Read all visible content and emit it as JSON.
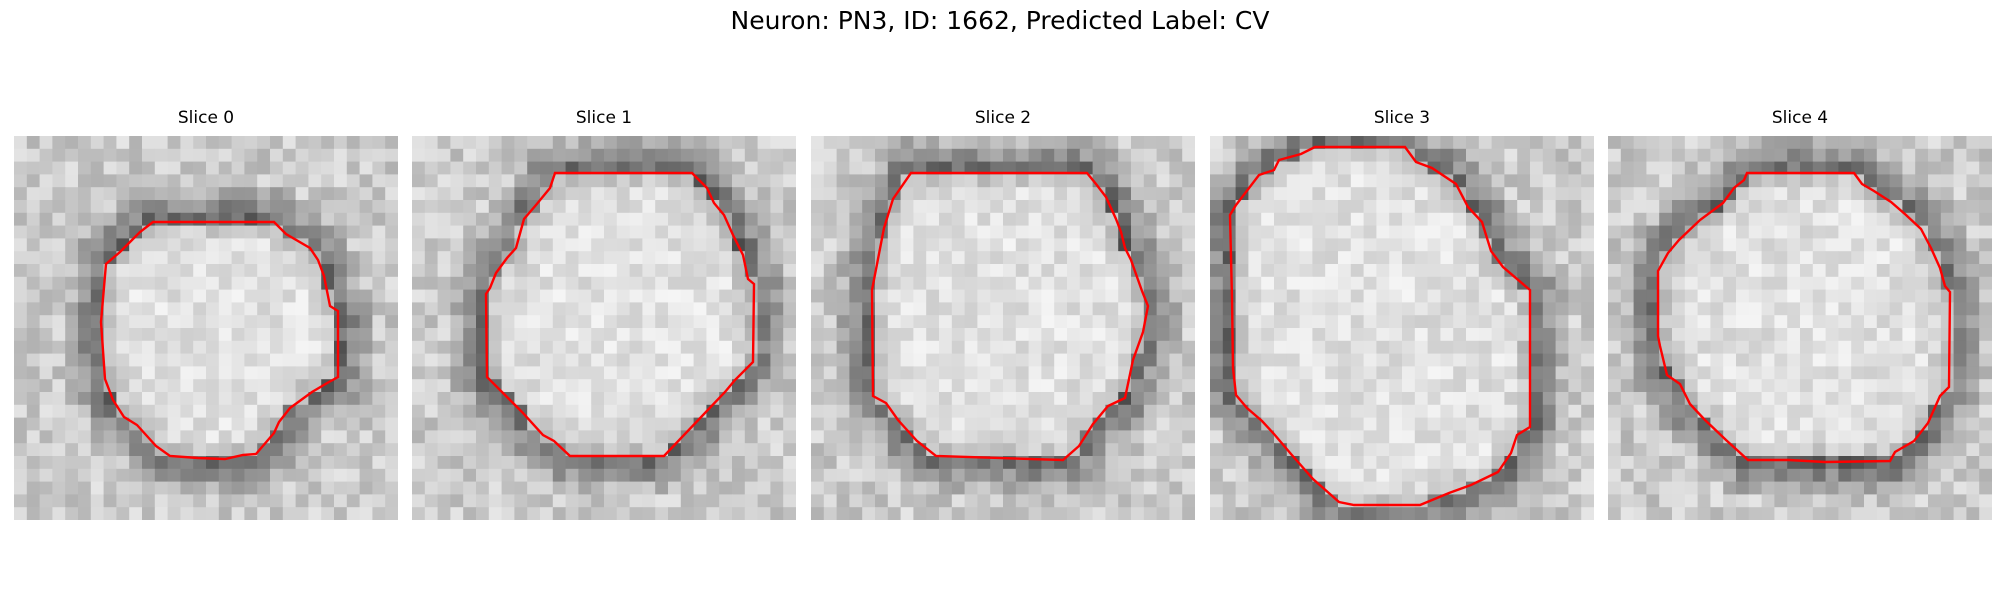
{
  "figure": {
    "title": "Neuron: PN3, ID: 1662, Predicted Label: CV",
    "panels": [
      {
        "label": "Slice 0"
      },
      {
        "label": "Slice 1"
      },
      {
        "label": "Slice 2"
      },
      {
        "label": "Slice 3"
      },
      {
        "label": "Slice 4"
      }
    ],
    "contour_color": "#ff0000",
    "colormap": "gray"
  }
}
